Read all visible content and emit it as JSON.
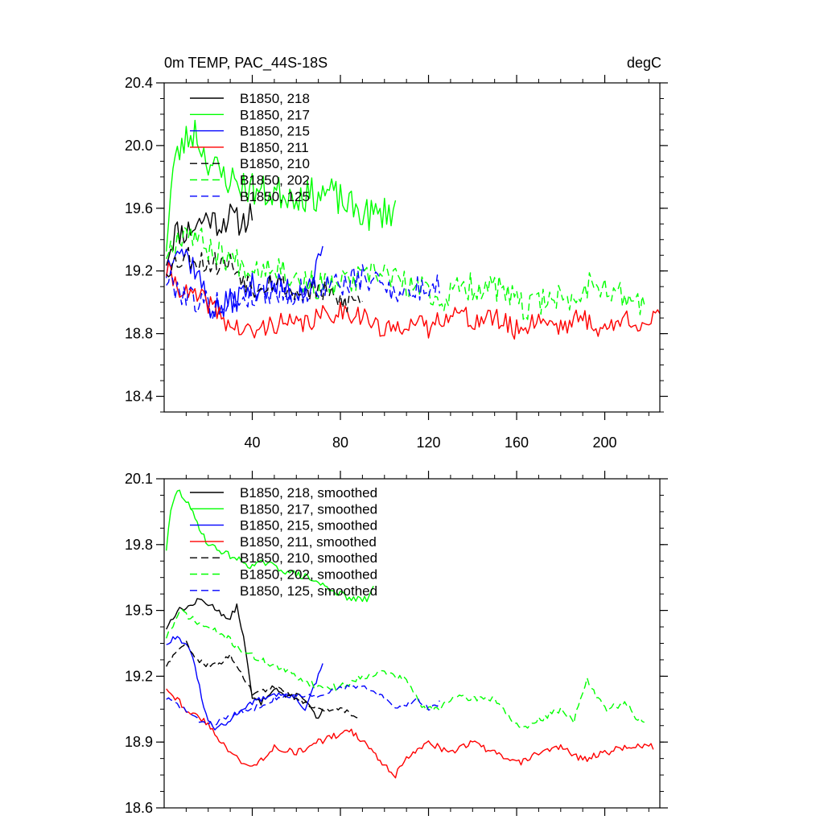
{
  "chart_data": [
    {
      "type": "line",
      "title": "0m TEMP, PAC_44S-18S",
      "units": "degC",
      "xlabel": "",
      "ylabel": "",
      "xlim": [
        0,
        225
      ],
      "ylim": [
        18.3,
        20.4
      ],
      "xticks": [
        40,
        80,
        120,
        160,
        200
      ],
      "xtick_labels": [
        "40",
        "80",
        "120",
        "160",
        "200"
      ],
      "yticks": [
        18.4,
        18.8,
        19.2,
        19.6,
        20.0,
        20.4
      ],
      "ytick_labels": [
        "18.4",
        "18.8",
        "19.2",
        "19.6",
        "20.0",
        "20.4"
      ],
      "legend_position": "top-left",
      "series": [
        {
          "name": "B1850, 218",
          "color": "#000000",
          "dash": "solid",
          "anchors": [
            [
              1,
              19.28
            ],
            [
              5,
              19.45
            ],
            [
              10,
              19.45
            ],
            [
              15,
              19.5
            ],
            [
              20,
              19.55
            ],
            [
              25,
              19.5
            ],
            [
              30,
              19.55
            ],
            [
              35,
              19.5
            ],
            [
              40,
              19.58
            ]
          ],
          "noise": 0.09,
          "seed": 11
        },
        {
          "name": "B1850, 217",
          "color": "#00ff00",
          "dash": "solid",
          "anchors": [
            [
              1,
              19.38
            ],
            [
              4,
              19.85
            ],
            [
              8,
              20.0
            ],
            [
              14,
              20.1
            ],
            [
              18,
              19.95
            ],
            [
              25,
              19.82
            ],
            [
              35,
              19.75
            ],
            [
              45,
              19.7
            ],
            [
              55,
              19.7
            ],
            [
              65,
              19.68
            ],
            [
              75,
              19.7
            ],
            [
              85,
              19.6
            ],
            [
              95,
              19.55
            ],
            [
              105,
              19.6
            ]
          ],
          "noise": 0.11,
          "seed": 23
        },
        {
          "name": "B1850, 215",
          "color": "#0000ff",
          "dash": "solid",
          "anchors": [
            [
              1,
              19.2
            ],
            [
              5,
              19.38
            ],
            [
              10,
              19.3
            ],
            [
              15,
              19.2
            ],
            [
              20,
              18.98
            ],
            [
              25,
              18.95
            ],
            [
              30,
              19.0
            ],
            [
              40,
              19.1
            ],
            [
              50,
              19.1
            ],
            [
              60,
              19.08
            ],
            [
              65,
              19.1
            ],
            [
              72,
              19.28
            ]
          ],
          "noise": 0.09,
          "seed": 37
        },
        {
          "name": "B1850, 211",
          "color": "#ff0000",
          "dash": "solid",
          "anchors": [
            [
              1,
              19.2
            ],
            [
              10,
              19.05
            ],
            [
              20,
              19.0
            ],
            [
              30,
              18.85
            ],
            [
              40,
              18.8
            ],
            [
              50,
              18.87
            ],
            [
              60,
              18.85
            ],
            [
              70,
              18.9
            ],
            [
              80,
              18.95
            ],
            [
              90,
              18.92
            ],
            [
              100,
              18.8
            ],
            [
              110,
              18.88
            ],
            [
              120,
              18.83
            ],
            [
              130,
              18.95
            ],
            [
              140,
              18.88
            ],
            [
              150,
              18.9
            ],
            [
              160,
              18.82
            ],
            [
              170,
              18.9
            ],
            [
              180,
              18.85
            ],
            [
              190,
              18.9
            ],
            [
              200,
              18.82
            ],
            [
              210,
              18.9
            ],
            [
              220,
              18.86
            ],
            [
              225,
              18.9
            ]
          ],
          "noise": 0.07,
          "seed": 41
        },
        {
          "name": "B1850, 210",
          "color": "#000000",
          "dash": "dash",
          "anchors": [
            [
              1,
              19.22
            ],
            [
              10,
              19.3
            ],
            [
              20,
              19.25
            ],
            [
              30,
              19.25
            ],
            [
              40,
              19.1
            ],
            [
              50,
              19.15
            ],
            [
              60,
              19.05
            ],
            [
              70,
              19.08
            ],
            [
              80,
              19.0
            ],
            [
              90,
              19.02
            ]
          ],
          "noise": 0.08,
          "seed": 53
        },
        {
          "name": "B1850, 202",
          "color": "#00ff00",
          "dash": "dash",
          "anchors": [
            [
              1,
              19.32
            ],
            [
              10,
              19.48
            ],
            [
              20,
              19.35
            ],
            [
              30,
              19.28
            ],
            [
              40,
              19.22
            ],
            [
              50,
              19.25
            ],
            [
              60,
              19.15
            ],
            [
              70,
              19.1
            ],
            [
              80,
              19.12
            ],
            [
              90,
              19.15
            ],
            [
              100,
              19.2
            ],
            [
              110,
              19.1
            ],
            [
              120,
              19.08
            ],
            [
              125,
              19.0
            ],
            [
              135,
              19.1
            ],
            [
              150,
              19.1
            ],
            [
              165,
              18.95
            ],
            [
              175,
              19.05
            ],
            [
              185,
              19.0
            ],
            [
              195,
              19.15
            ],
            [
              205,
              19.05
            ],
            [
              215,
              19.0
            ],
            [
              218,
              19.0
            ]
          ],
          "noise": 0.09,
          "seed": 67
        },
        {
          "name": "B1850, 125",
          "color": "#0000ff",
          "dash": "dash",
          "anchors": [
            [
              1,
              19.15
            ],
            [
              10,
              19.05
            ],
            [
              20,
              18.98
            ],
            [
              30,
              19.0
            ],
            [
              40,
              19.05
            ],
            [
              50,
              19.08
            ],
            [
              60,
              19.05
            ],
            [
              70,
              19.1
            ],
            [
              80,
              19.12
            ],
            [
              90,
              19.15
            ],
            [
              100,
              19.12
            ],
            [
              110,
              19.05
            ],
            [
              120,
              19.1
            ],
            [
              125,
              19.1
            ]
          ],
          "noise": 0.09,
          "seed": 79
        }
      ]
    },
    {
      "type": "line",
      "title": "",
      "xlabel": "",
      "ylabel": "",
      "xlim": [
        0,
        225
      ],
      "ylim": [
        18.6,
        20.1
      ],
      "xticks": [
        40,
        80,
        120,
        160,
        200
      ],
      "xtick_labels": [],
      "yticks": [
        18.6,
        18.9,
        19.2,
        19.5,
        19.8,
        20.1
      ],
      "ytick_labels": [
        "18.6",
        "18.9",
        "19.2",
        "19.5",
        "19.8",
        "20.1"
      ],
      "legend_position": "top-left",
      "series": [
        {
          "name": "B1850, 218, smoothed",
          "color": "#000000",
          "dash": "solid",
          "anchors": [
            [
              1,
              19.42
            ],
            [
              6,
              19.5
            ],
            [
              12,
              19.52
            ],
            [
              16,
              19.55
            ],
            [
              20,
              19.53
            ],
            [
              25,
              19.5
            ],
            [
              29,
              19.45
            ],
            [
              33,
              19.52
            ],
            [
              36,
              19.38
            ],
            [
              40,
              19.1
            ],
            [
              44,
              19.08
            ],
            [
              50,
              19.15
            ],
            [
              56,
              19.1
            ],
            [
              62,
              19.12
            ],
            [
              66,
              19.06
            ],
            [
              70,
              19.0
            ],
            [
              72,
              19.05
            ]
          ],
          "noise": 0.012,
          "seed": 13
        },
        {
          "name": "B1850, 217, smoothed",
          "color": "#00ff00",
          "dash": "solid",
          "anchors": [
            [
              1,
              19.78
            ],
            [
              3,
              19.95
            ],
            [
              6,
              20.05
            ],
            [
              10,
              20.0
            ],
            [
              15,
              19.9
            ],
            [
              20,
              19.8
            ],
            [
              30,
              19.75
            ],
            [
              40,
              19.7
            ],
            [
              45,
              19.72
            ],
            [
              55,
              19.68
            ],
            [
              65,
              19.65
            ],
            [
              75,
              19.6
            ],
            [
              85,
              19.55
            ],
            [
              92,
              19.55
            ],
            [
              95,
              19.6
            ]
          ],
          "noise": 0.015,
          "seed": 29
        },
        {
          "name": "B1850, 215, smoothed",
          "color": "#0000ff",
          "dash": "solid",
          "anchors": [
            [
              1,
              19.35
            ],
            [
              5,
              19.38
            ],
            [
              10,
              19.35
            ],
            [
              14,
              19.25
            ],
            [
              18,
              19.05
            ],
            [
              22,
              18.96
            ],
            [
              28,
              18.98
            ],
            [
              35,
              19.05
            ],
            [
              40,
              19.08
            ],
            [
              50,
              19.12
            ],
            [
              60,
              19.1
            ],
            [
              64,
              19.05
            ],
            [
              68,
              19.15
            ],
            [
              72,
              19.25
            ]
          ],
          "noise": 0.012,
          "seed": 31
        },
        {
          "name": "B1850, 211, smoothed",
          "color": "#ff0000",
          "dash": "solid",
          "anchors": [
            [
              1,
              19.15
            ],
            [
              10,
              19.05
            ],
            [
              20,
              18.98
            ],
            [
              30,
              18.85
            ],
            [
              40,
              18.78
            ],
            [
              50,
              18.88
            ],
            [
              60,
              18.85
            ],
            [
              70,
              18.9
            ],
            [
              78,
              18.93
            ],
            [
              85,
              18.95
            ],
            [
              95,
              18.85
            ],
            [
              105,
              18.75
            ],
            [
              112,
              18.85
            ],
            [
              120,
              18.9
            ],
            [
              130,
              18.85
            ],
            [
              140,
              18.9
            ],
            [
              150,
              18.85
            ],
            [
              160,
              18.8
            ],
            [
              170,
              18.85
            ],
            [
              180,
              18.88
            ],
            [
              190,
              18.82
            ],
            [
              200,
              18.85
            ],
            [
              210,
              18.88
            ],
            [
              222,
              18.88
            ]
          ],
          "noise": 0.015,
          "seed": 43
        },
        {
          "name": "B1850, 210, smoothed",
          "color": "#000000",
          "dash": "dash",
          "anchors": [
            [
              1,
              19.25
            ],
            [
              5,
              19.3
            ],
            [
              10,
              19.35
            ],
            [
              15,
              19.28
            ],
            [
              20,
              19.25
            ],
            [
              25,
              19.25
            ],
            [
              30,
              19.3
            ],
            [
              35,
              19.22
            ],
            [
              40,
              19.12
            ],
            [
              50,
              19.15
            ],
            [
              60,
              19.1
            ],
            [
              70,
              19.05
            ],
            [
              80,
              19.05
            ],
            [
              88,
              19.02
            ]
          ],
          "noise": 0.012,
          "seed": 59
        },
        {
          "name": "B1850, 202, smoothed",
          "color": "#00ff00",
          "dash": "dash",
          "anchors": [
            [
              1,
              19.38
            ],
            [
              8,
              19.5
            ],
            [
              14,
              19.45
            ],
            [
              20,
              19.42
            ],
            [
              28,
              19.38
            ],
            [
              35,
              19.32
            ],
            [
              42,
              19.28
            ],
            [
              50,
              19.25
            ],
            [
              60,
              19.2
            ],
            [
              70,
              19.15
            ],
            [
              80,
              19.15
            ],
            [
              90,
              19.2
            ],
            [
              100,
              19.22
            ],
            [
              110,
              19.18
            ],
            [
              118,
              19.05
            ],
            [
              124,
              19.05
            ],
            [
              130,
              19.1
            ],
            [
              140,
              19.1
            ],
            [
              150,
              19.1
            ],
            [
              162,
              18.95
            ],
            [
              170,
              19.0
            ],
            [
              180,
              19.05
            ],
            [
              186,
              19.0
            ],
            [
              192,
              19.18
            ],
            [
              200,
              19.05
            ],
            [
              210,
              19.08
            ],
            [
              214,
              19.0
            ],
            [
              218,
              19.0
            ]
          ],
          "noise": 0.015,
          "seed": 71
        },
        {
          "name": "B1850, 125, smoothed",
          "color": "#0000ff",
          "dash": "dash",
          "anchors": [
            [
              1,
              19.1
            ],
            [
              8,
              19.06
            ],
            [
              15,
              19.0
            ],
            [
              22,
              18.98
            ],
            [
              30,
              19.02
            ],
            [
              40,
              19.05
            ],
            [
              50,
              19.1
            ],
            [
              60,
              19.12
            ],
            [
              70,
              19.1
            ],
            [
              80,
              19.15
            ],
            [
              90,
              19.15
            ],
            [
              100,
              19.1
            ],
            [
              105,
              19.05
            ],
            [
              110,
              19.07
            ],
            [
              115,
              19.1
            ],
            [
              120,
              19.05
            ],
            [
              125,
              19.08
            ]
          ],
          "noise": 0.012,
          "seed": 83
        }
      ]
    }
  ]
}
